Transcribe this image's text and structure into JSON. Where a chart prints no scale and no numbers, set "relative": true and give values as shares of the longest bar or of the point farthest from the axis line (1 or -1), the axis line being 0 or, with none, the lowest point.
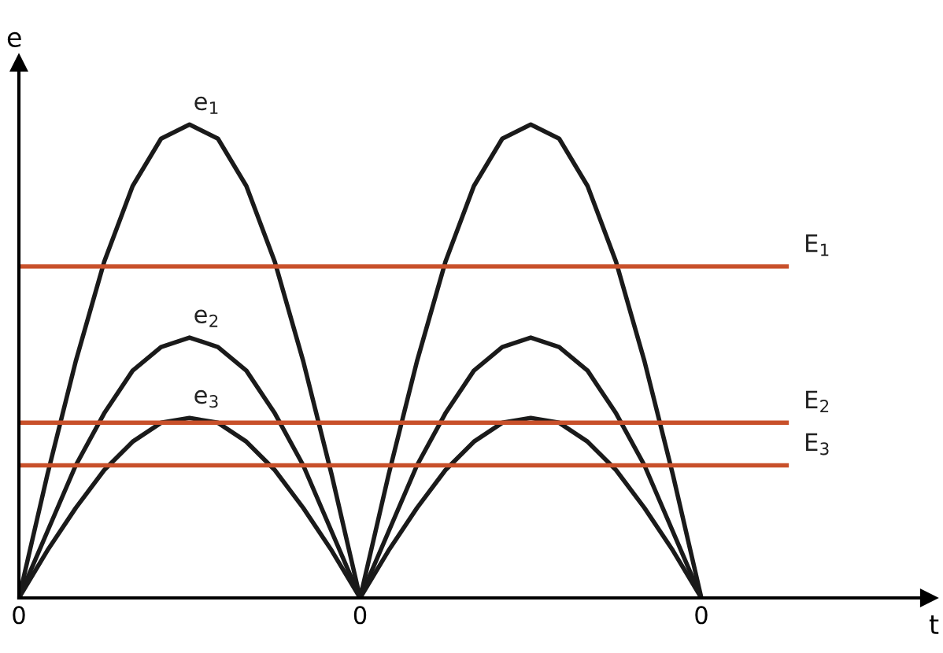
{
  "chart_data": {
    "type": "line",
    "relative": true,
    "xlabel": "t",
    "ylabel": "e",
    "categories": [
      "0",
      null,
      null,
      null,
      null,
      null,
      null,
      null,
      null,
      null,
      null,
      null,
      "0",
      null,
      null,
      null,
      null,
      null,
      null,
      null,
      null,
      null,
      null,
      null,
      "0",
      null,
      null,
      null,
      null,
      null,
      null,
      null,
      null
    ],
    "tick_labels": "x",
    "grid": false,
    "legend": false,
    "marker": "none",
    "line_style": "solid",
    "series": [
      {
        "name": "e$_{1}$",
        "color": "#1a1a1a",
        "values": [
          0,
          0.26,
          0.5,
          0.71,
          0.87,
          0.97,
          1,
          0.97,
          0.87,
          0.71,
          0.5,
          0.26,
          0,
          0.26,
          0.5,
          0.71,
          0.87,
          0.97,
          1,
          0.97,
          0.87,
          0.71,
          0.5,
          0.26,
          0,
          null,
          null,
          null,
          null,
          null,
          null,
          null,
          null
        ]
      },
      {
        "name": "e$_{2}$",
        "color": "#1a1a1a",
        "values": [
          0,
          0.14,
          0.28,
          0.39,
          0.48,
          0.53,
          0.55,
          0.53,
          0.48,
          0.39,
          0.28,
          0.14,
          0,
          0.14,
          0.28,
          0.39,
          0.48,
          0.53,
          0.55,
          0.53,
          0.48,
          0.39,
          0.28,
          0.14,
          0,
          null,
          null,
          null,
          null,
          null,
          null,
          null,
          null
        ]
      },
      {
        "name": "e$_{3}$",
        "color": "#1a1a1a",
        "values": [
          0,
          0.1,
          0.19,
          0.27,
          0.33,
          0.37,
          0.38,
          0.37,
          0.33,
          0.27,
          0.19,
          0.1,
          0,
          0.1,
          0.19,
          0.27,
          0.33,
          0.37,
          0.38,
          0.37,
          0.33,
          0.27,
          0.19,
          0.1,
          0,
          null,
          null,
          null,
          null,
          null,
          null,
          null,
          null
        ]
      },
      {
        "name": "E$_{1}$",
        "color": "#c8502a",
        "values": [
          0.7,
          0.7,
          0.7,
          0.7,
          0.7,
          0.7,
          0.7,
          0.7,
          0.7,
          0.7,
          0.7,
          0.7,
          0.7,
          0.7,
          0.7,
          0.7,
          0.7,
          0.7,
          0.7,
          0.7,
          0.7,
          0.7,
          0.7,
          0.7,
          0.7,
          0.7,
          0.7,
          0.7,
          null,
          null,
          null,
          null,
          null
        ]
      },
      {
        "name": "E$_{2}$",
        "color": "#c8502a",
        "values": [
          0.37,
          0.37,
          0.37,
          0.37,
          0.37,
          0.37,
          0.37,
          0.37,
          0.37,
          0.37,
          0.37,
          0.37,
          0.37,
          0.37,
          0.37,
          0.37,
          0.37,
          0.37,
          0.37,
          0.37,
          0.37,
          0.37,
          0.37,
          0.37,
          0.37,
          0.37,
          0.37,
          0.37,
          null,
          null,
          null,
          null,
          null
        ]
      },
      {
        "name": "E$_{3}$",
        "color": "#c8502a",
        "values": [
          0.28,
          0.28,
          0.28,
          0.28,
          0.28,
          0.28,
          0.28,
          0.28,
          0.28,
          0.28,
          0.28,
          0.28,
          0.28,
          0.28,
          0.28,
          0.28,
          0.28,
          0.28,
          0.28,
          0.28,
          0.28,
          0.28,
          0.28,
          0.28,
          0.28,
          0.28,
          0.28,
          0.28,
          null,
          null,
          null,
          null,
          null
        ]
      }
    ]
  }
}
